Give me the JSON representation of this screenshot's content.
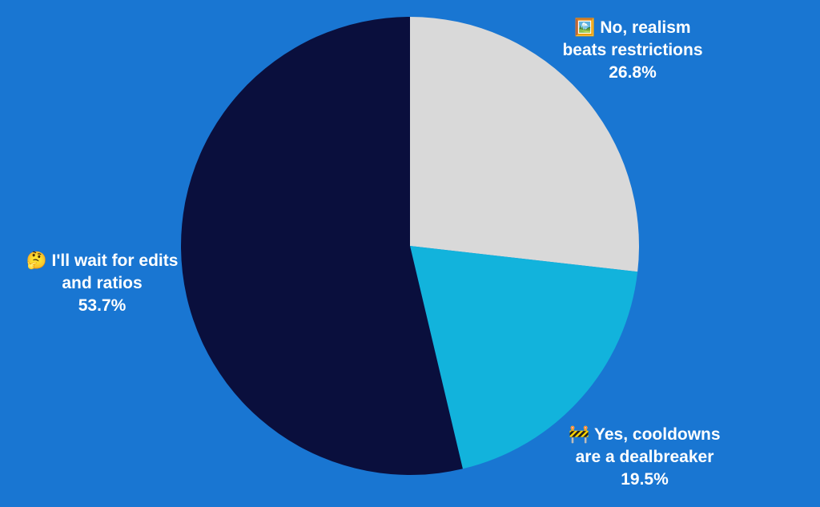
{
  "chart_data": {
    "type": "pie",
    "categories": [
      "🖼️ No, realism beats restrictions",
      "🚧 Yes, cooldowns are a dealbreaker",
      "🤔 I'll wait for edits and ratios"
    ],
    "values": [
      26.8,
      19.5,
      53.7
    ],
    "value_labels": [
      "26.8%",
      "19.5%",
      "53.7%"
    ],
    "colors": [
      "#d9d9d9",
      "#12b3dc",
      "#0a0f3d"
    ]
  }
}
